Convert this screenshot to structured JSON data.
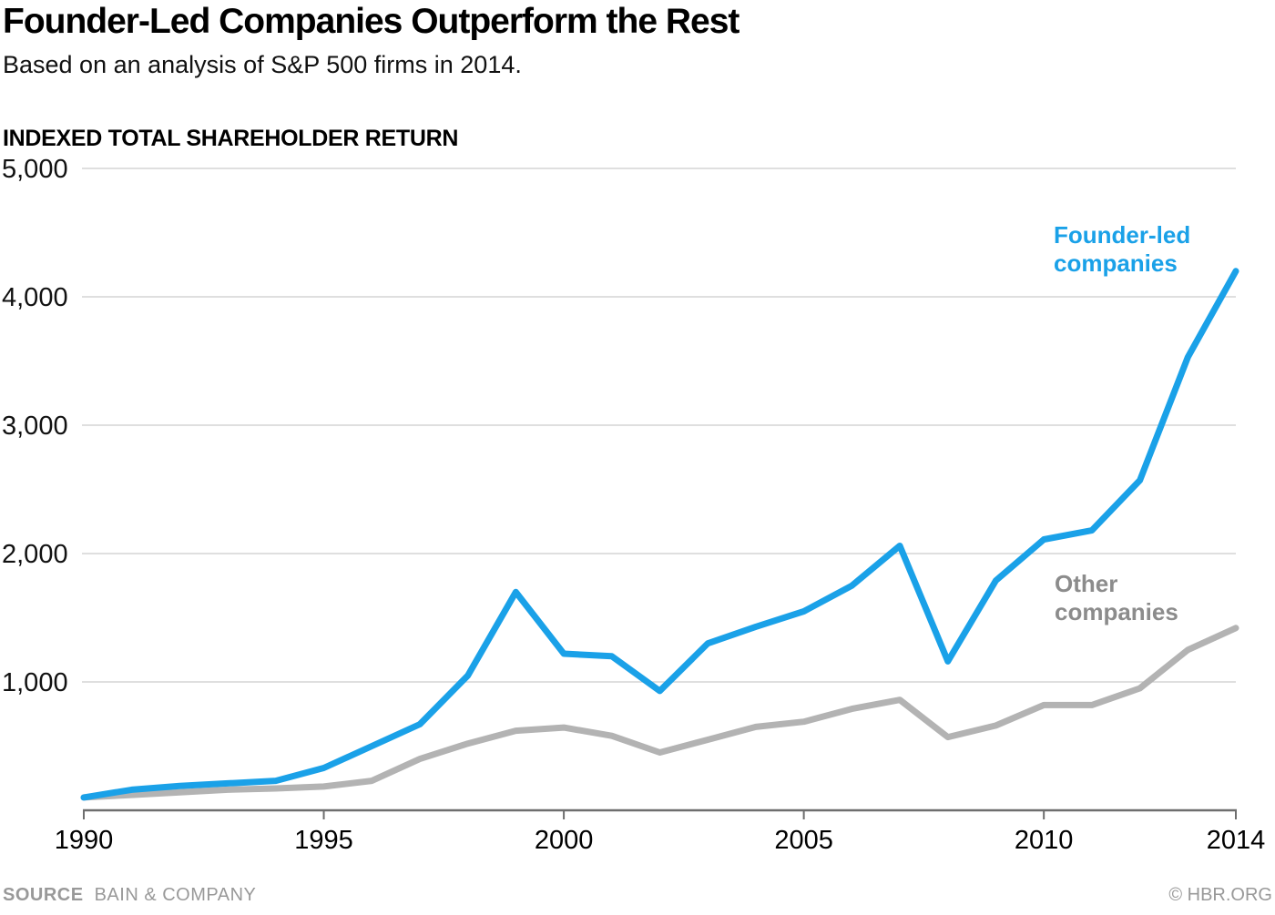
{
  "header": {
    "title": "Founder-Led Companies Outperform the Rest",
    "subtitle": "Based on an analysis of S&P 500 firms in 2014."
  },
  "chart_data": {
    "type": "line",
    "title": "Founder-Led Companies Outperform the Rest",
    "subtitle": "Based on an analysis of S&P 500 firms in 2014.",
    "ylabel": "INDEXED TOTAL SHAREHOLDER RETURN",
    "xlabel": "",
    "ylim": [
      0,
      5000
    ],
    "x_range": [
      1990,
      2014
    ],
    "grid": "horizontal",
    "legend_position": "inline-labels",
    "x": [
      1990,
      1991,
      1992,
      1993,
      1994,
      1995,
      1996,
      1997,
      1998,
      1999,
      2000,
      2001,
      2002,
      2003,
      2004,
      2005,
      2006,
      2007,
      2008,
      2009,
      2010,
      2011,
      2012,
      2013,
      2014
    ],
    "y_ticks": [
      {
        "value": 5000,
        "label": "5,000"
      },
      {
        "value": 4000,
        "label": "4,000"
      },
      {
        "value": 3000,
        "label": "3,000"
      },
      {
        "value": 2000,
        "label": "2,000"
      },
      {
        "value": 1000,
        "label": "1,000"
      }
    ],
    "x_ticks": [
      {
        "value": 1990,
        "label": "1990"
      },
      {
        "value": 1995,
        "label": "1995"
      },
      {
        "value": 2000,
        "label": "2000"
      },
      {
        "value": 2005,
        "label": "2005"
      },
      {
        "value": 2010,
        "label": "2010"
      },
      {
        "value": 2014,
        "label": "2014"
      }
    ],
    "series": [
      {
        "name": "Other companies",
        "label_line1": "Other",
        "label_line2": "companies",
        "color": "#b3b3b3",
        "label_color": "#8c8c8c",
        "values": [
          100,
          120,
          140,
          160,
          170,
          185,
          230,
          400,
          520,
          620,
          645,
          580,
          450,
          550,
          650,
          690,
          790,
          860,
          570,
          660,
          820,
          820,
          950,
          1250,
          1420
        ]
      },
      {
        "name": "Founder-led companies",
        "label_line1": "Founder-led",
        "label_line2": "companies",
        "color": "#1aa1e8",
        "label_color": "#1aa1e8",
        "values": [
          100,
          160,
          190,
          210,
          230,
          330,
          500,
          670,
          1050,
          1700,
          1220,
          1200,
          930,
          1300,
          1430,
          1550,
          1750,
          2060,
          1160,
          1790,
          2110,
          2180,
          2570,
          3530,
          4200
        ]
      }
    ]
  },
  "footer": {
    "source_label": "SOURCE",
    "source": "BAIN & COMPANY",
    "credit": "© HBR.ORG"
  },
  "colors": {
    "accent_blue": "#1aa1e8",
    "line_gray": "#b3b3b3",
    "label_gray": "#8c8c8c",
    "gridline": "#cccccc",
    "axis": "#6e6e6e",
    "tick_text": "#111111",
    "footer_text": "#999999"
  }
}
